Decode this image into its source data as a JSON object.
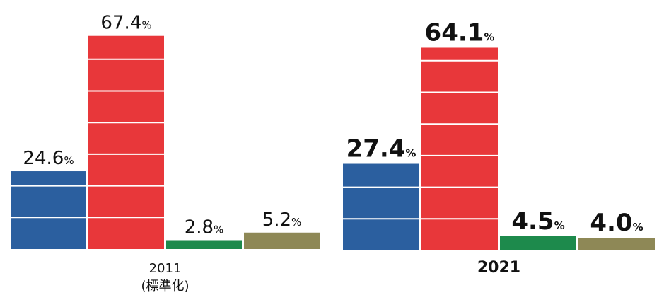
{
  "chart_data": {
    "type": "bar",
    "categories": [
      "2011",
      "2021"
    ],
    "category_notes": [
      "(標準化)",
      null
    ],
    "series": [
      {
        "color": "#2b5f9f",
        "values": [
          24.6,
          27.4
        ],
        "value_labels": [
          "24.6%",
          "27.4%"
        ]
      },
      {
        "color": "#e8373a",
        "values": [
          67.4,
          64.1
        ],
        "value_labels": [
          "67.4%",
          "64.1%"
        ]
      },
      {
        "color": "#1d8a4c",
        "values": [
          2.8,
          4.5
        ],
        "value_labels": [
          "2.8%",
          "4.5%"
        ]
      },
      {
        "color": "#8e8856",
        "values": [
          5.2,
          4.0
        ],
        "value_labels": [
          "5.2%",
          "4.0%"
        ]
      }
    ]
  }
}
